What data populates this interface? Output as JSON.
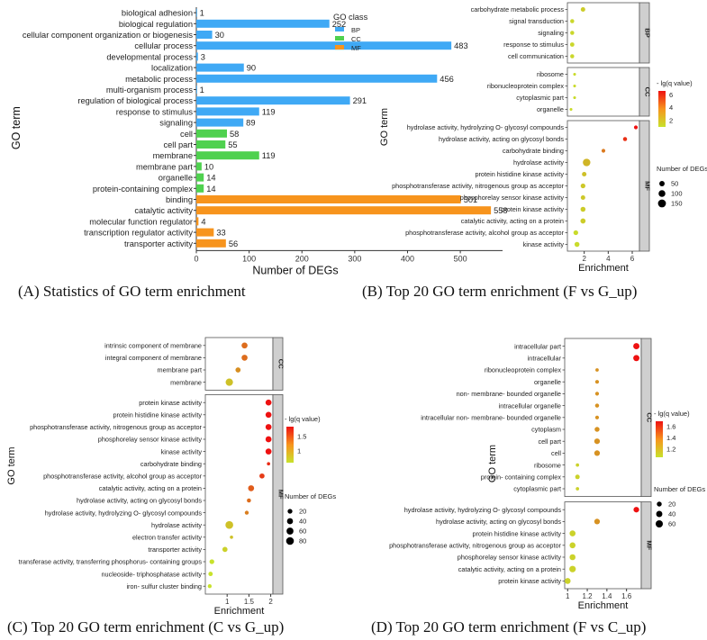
{
  "captions": [
    "(A) Statistics of GO term enrichment",
    "(B) Top 20 GO term enrichment (F vs G_up)",
    "(C) Top 20 GO term enrichment (C vs G_up)",
    "(D) Top 20 GO term enrichment (F vs C_up)"
  ],
  "colors": {
    "BP": "#3fa9f5",
    "CC": "#4fd14f",
    "MF": "#f7941d",
    "high": "#ee1111",
    "low": "#c8e22c",
    "strip": "#cfcfcf"
  },
  "chart_data": [
    {
      "type": "bar",
      "orientation": "horizontal",
      "title": "",
      "xlabel": "Number of DEGs",
      "ylabel": "GO term",
      "xlim": [
        0,
        580
      ],
      "xticks": [
        0,
        100,
        200,
        300,
        400,
        500
      ],
      "legend": {
        "title": "GO class",
        "position": "top-right",
        "entries": [
          "BP",
          "CC",
          "MF"
        ]
      },
      "categories": [
        "biological adhesion",
        "biological regulation",
        "cellular component organization or biogenesis",
        "cellular process",
        "developmental process",
        "localization",
        "metabolic process",
        "multi-organism process",
        "regulation of biological process",
        "response to stimulus",
        "signaling",
        "cell",
        "cell part",
        "membrane",
        "membrane part",
        "organelle",
        "protein-containing complex",
        "binding",
        "catalytic activity",
        "molecular function regulator",
        "transcription regulator activity",
        "transporter activity"
      ],
      "values": [
        1,
        252,
        30,
        483,
        3,
        90,
        456,
        1,
        291,
        119,
        89,
        58,
        55,
        119,
        10,
        14,
        14,
        501,
        558,
        4,
        33,
        56
      ],
      "classes": [
        "BP",
        "BP",
        "BP",
        "BP",
        "BP",
        "BP",
        "BP",
        "BP",
        "BP",
        "BP",
        "BP",
        "CC",
        "CC",
        "CC",
        "CC",
        "CC",
        "CC",
        "MF",
        "MF",
        "MF",
        "MF",
        "MF"
      ]
    },
    {
      "type": "scatter",
      "xlabel": "Enrichment",
      "ylabel": "GO term",
      "xlim": [
        0.6,
        6.6
      ],
      "xticks": [
        2,
        4,
        6
      ],
      "color_legend": {
        "title": "- lg(q value)",
        "ticks": [
          6,
          4,
          2
        ],
        "min": 1,
        "max": 6.6
      },
      "size_legend": {
        "title": "Number of DEGs",
        "values": [
          50,
          100,
          150
        ]
      },
      "groups": [
        {
          "label": "BP",
          "terms": [
            {
              "term": "carbohydrate metabolic process",
              "x": 1.9,
              "size": 30,
              "q": 1.6
            },
            {
              "term": "signal transduction",
              "x": 1.0,
              "size": 20,
              "q": 1.3
            },
            {
              "term": "signaling",
              "x": 1.0,
              "size": 20,
              "q": 1.3
            },
            {
              "term": "response to stimulus",
              "x": 1.0,
              "size": 25,
              "q": 1.3
            },
            {
              "term": "cell communication",
              "x": 1.0,
              "size": 20,
              "q": 1.3
            }
          ]
        },
        {
          "label": "CC",
          "terms": [
            {
              "term": "ribosome",
              "x": 1.2,
              "size": 4,
              "q": 1.2
            },
            {
              "term": "ribonucleoprotein complex",
              "x": 1.2,
              "size": 4,
              "q": 1.2
            },
            {
              "term": "cytoplasmic part",
              "x": 1.2,
              "size": 4,
              "q": 1.2
            },
            {
              "term": "organelle",
              "x": 0.9,
              "size": 4,
              "q": 1.2
            }
          ]
        },
        {
          "label": "MF",
          "terms": [
            {
              "term": "hydrolase activity, hydrolyzing O- glycosyl compounds",
              "x": 6.3,
              "size": 15,
              "q": 6.6
            },
            {
              "term": "hydrolase activity, acting on glycosyl bonds",
              "x": 5.4,
              "size": 20,
              "q": 5.8
            },
            {
              "term": "carbohydrate binding",
              "x": 3.6,
              "size": 15,
              "q": 3.8
            },
            {
              "term": "hydrolase activity",
              "x": 2.2,
              "size": 130,
              "q": 2.2
            },
            {
              "term": "protein histidine kinase activity",
              "x": 2.0,
              "size": 30,
              "q": 1.9
            },
            {
              "term": "phosphotransferase activity, nitrogenous group as acceptor",
              "x": 1.9,
              "size": 35,
              "q": 1.7
            },
            {
              "term": "phosphorelay sensor kinase activity",
              "x": 1.9,
              "size": 30,
              "q": 1.7
            },
            {
              "term": "protein kinase activity",
              "x": 1.9,
              "size": 40,
              "q": 1.6
            },
            {
              "term": "catalytic activity, acting on a protein",
              "x": 1.9,
              "size": 45,
              "q": 1.6
            },
            {
              "term": "phosphotransferase activity, alcohol group as acceptor",
              "x": 1.3,
              "size": 35,
              "q": 1.2
            },
            {
              "term": "kinase activity",
              "x": 1.4,
              "size": 40,
              "q": 1.2
            }
          ]
        }
      ]
    },
    {
      "type": "scatter",
      "xlabel": "Enrichment",
      "ylabel": "GO term",
      "xlim": [
        0.5,
        2.05
      ],
      "xticks": [
        1.0,
        1.5,
        2.0
      ],
      "color_legend": {
        "title": "- lg(q value)",
        "ticks": [
          1.5,
          1.0
        ],
        "min": 0.6,
        "max": 1.85
      },
      "size_legend": {
        "title": "Number of DEGs",
        "values": [
          20,
          40,
          60,
          80
        ]
      },
      "groups": [
        {
          "label": "CC",
          "terms": [
            {
              "term": "intrinsic component of membrane",
              "x": 1.4,
              "size": 40,
              "q": 1.3
            },
            {
              "term": "integral component of membrane",
              "x": 1.4,
              "size": 40,
              "q": 1.3
            },
            {
              "term": "membrane part",
              "x": 1.25,
              "size": 25,
              "q": 1.1
            },
            {
              "term": "membrane",
              "x": 1.05,
              "size": 70,
              "q": 0.8
            }
          ]
        },
        {
          "label": "MF",
          "terms": [
            {
              "term": "protein kinase activity",
              "x": 1.95,
              "size": 40,
              "q": 1.85
            },
            {
              "term": "protein histidine kinase activity",
              "x": 1.95,
              "size": 40,
              "q": 1.85
            },
            {
              "term": "phosphotransferase activity, nitrogenous group as acceptor",
              "x": 1.95,
              "size": 40,
              "q": 1.85
            },
            {
              "term": "phosphorelay sensor kinase activity",
              "x": 1.95,
              "size": 40,
              "q": 1.85
            },
            {
              "term": "kinase activity",
              "x": 1.95,
              "size": 40,
              "q": 1.85
            },
            {
              "term": "carbohydrate binding",
              "x": 1.95,
              "size": 5,
              "q": 1.7
            },
            {
              "term": "phosphotransferase activity, alcohol group as acceptor",
              "x": 1.8,
              "size": 25,
              "q": 1.6
            },
            {
              "term": "catalytic activity, acting on a protein",
              "x": 1.55,
              "size": 40,
              "q": 1.4
            },
            {
              "term": "hydrolase activity, acting on glycosyl bonds",
              "x": 1.5,
              "size": 12,
              "q": 1.3
            },
            {
              "term": "hydrolase activity, hydrolyzing O- glycosyl compounds",
              "x": 1.45,
              "size": 10,
              "q": 1.2
            },
            {
              "term": "hydrolase activity",
              "x": 1.05,
              "size": 80,
              "q": 0.8
            },
            {
              "term": "electron transfer activity",
              "x": 1.1,
              "size": 5,
              "q": 0.8
            },
            {
              "term": "transporter activity",
              "x": 0.95,
              "size": 25,
              "q": 0.7
            },
            {
              "term": "transferase activity, transferring phosphorus- containing groups",
              "x": 0.65,
              "size": 20,
              "q": 0.6
            },
            {
              "term": "nucleoside- triphosphatase activity",
              "x": 0.62,
              "size": 15,
              "q": 0.6
            },
            {
              "term": "iron- sulfur cluster binding",
              "x": 0.6,
              "size": 10,
              "q": 0.6
            }
          ]
        }
      ]
    },
    {
      "type": "scatter",
      "xlabel": "Enrichment",
      "ylabel": "GO term",
      "xlim": [
        0.97,
        1.75
      ],
      "xticks": [
        1.0,
        1.2,
        1.4,
        1.6
      ],
      "color_legend": {
        "title": "- lg(q value)",
        "ticks": [
          1.6,
          1.4,
          1.2
        ],
        "min": 1.05,
        "max": 1.7
      },
      "size_legend": {
        "title": "Number of DEGs",
        "values": [
          20,
          40,
          60
        ]
      },
      "groups": [
        {
          "label": "CC",
          "terms": [
            {
              "term": "intracellular part",
              "x": 1.7,
              "size": 40,
              "q": 1.7
            },
            {
              "term": "intracellular",
              "x": 1.7,
              "size": 40,
              "q": 1.7
            },
            {
              "term": "ribonucleoprotein complex",
              "x": 1.3,
              "size": 5,
              "q": 1.3
            },
            {
              "term": "organelle",
              "x": 1.3,
              "size": 8,
              "q": 1.3
            },
            {
              "term": "non- membrane- bounded organelle",
              "x": 1.3,
              "size": 8,
              "q": 1.3
            },
            {
              "term": "intracellular organelle",
              "x": 1.3,
              "size": 10,
              "q": 1.3
            },
            {
              "term": "intracellular non- membrane- bounded organelle",
              "x": 1.3,
              "size": 8,
              "q": 1.3
            },
            {
              "term": "cytoplasm",
              "x": 1.3,
              "size": 20,
              "q": 1.3
            },
            {
              "term": "cell part",
              "x": 1.3,
              "size": 30,
              "q": 1.3
            },
            {
              "term": "cell",
              "x": 1.3,
              "size": 30,
              "q": 1.3
            },
            {
              "term": "ribosome",
              "x": 1.1,
              "size": 5,
              "q": 1.1
            },
            {
              "term": "protein- containing complex",
              "x": 1.1,
              "size": 15,
              "q": 1.1
            },
            {
              "term": "cytoplasmic part",
              "x": 1.1,
              "size": 5,
              "q": 1.1
            }
          ]
        },
        {
          "label": "MF",
          "terms": [
            {
              "term": "hydrolase activity, hydrolyzing O- glycosyl compounds",
              "x": 1.7,
              "size": 30,
              "q": 1.7
            },
            {
              "term": "hydrolase activity, acting on glycosyl bonds",
              "x": 1.3,
              "size": 30,
              "q": 1.3
            },
            {
              "term": "protein histidine kinase activity",
              "x": 1.05,
              "size": 35,
              "q": 1.1
            },
            {
              "term": "phosphotransferase activity, nitrogenous group as acceptor",
              "x": 1.05,
              "size": 35,
              "q": 1.1
            },
            {
              "term": "phosphorelay sensor kinase activity",
              "x": 1.05,
              "size": 35,
              "q": 1.1
            },
            {
              "term": "catalytic activity, acting on a protein",
              "x": 1.05,
              "size": 45,
              "q": 1.1
            },
            {
              "term": "protein kinase activity",
              "x": 1.0,
              "size": 35,
              "q": 1.1
            }
          ]
        }
      ]
    }
  ]
}
